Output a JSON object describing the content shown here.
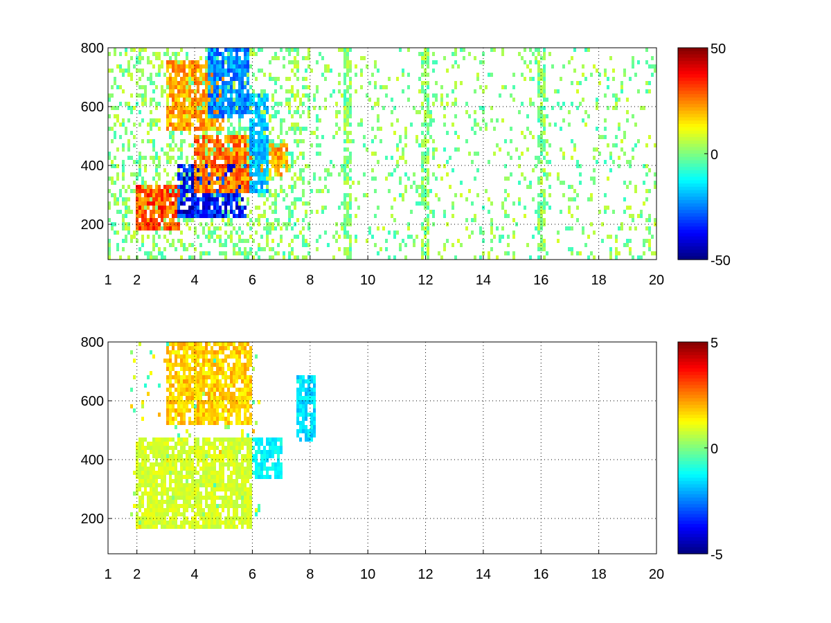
{
  "chart_data": [
    {
      "type": "heatmap",
      "name": "top-panel",
      "x_ticks": [
        1,
        2,
        4,
        6,
        8,
        10,
        12,
        14,
        16,
        18,
        20
      ],
      "x_tick_labels": [
        "1",
        "2",
        "4",
        "6",
        "8",
        "10",
        "12",
        "14",
        "16",
        "18",
        "20"
      ],
      "y_ticks": [
        200,
        400,
        600,
        800
      ],
      "y_tick_labels": [
        "200",
        "400",
        "600",
        "800"
      ],
      "xlim": [
        1,
        20
      ],
      "ylim": [
        80,
        800
      ],
      "grid": true,
      "colormap": "jet",
      "clim": [
        -50,
        50
      ],
      "colorbar_ticks": [
        50,
        0,
        -50
      ],
      "colorbar_tick_labels": [
        "50",
        "0",
        "-50"
      ],
      "regions": [
        {
          "desc": "lower ridge positive",
          "x0": 2.0,
          "x1": 3.5,
          "y0": 180,
          "y1": 330,
          "value": 35
        },
        {
          "desc": "lower ridge negative",
          "x0": 3.4,
          "x1": 5.8,
          "y0": 220,
          "y1": 400,
          "value": -42
        },
        {
          "desc": "lower band positive",
          "x0": 4.0,
          "x1": 6.0,
          "y0": 300,
          "y1": 500,
          "value": 30
        },
        {
          "desc": "upper band positive",
          "x0": 3.0,
          "x1": 5.0,
          "y0": 520,
          "y1": 760,
          "value": 25
        },
        {
          "desc": "upper band negative",
          "x0": 4.5,
          "x1": 5.9,
          "y0": 560,
          "y1": 800,
          "value": -28
        },
        {
          "desc": "tail positive",
          "x0": 6.2,
          "x1": 7.2,
          "y0": 360,
          "y1": 480,
          "value": 25
        },
        {
          "desc": "tail negative",
          "x0": 5.9,
          "x1": 6.6,
          "y0": 300,
          "y1": 640,
          "value": -22
        }
      ],
      "vertical_stripes_x": [
        9.3,
        12.0,
        16.0
      ]
    },
    {
      "type": "heatmap",
      "name": "bottom-panel",
      "x_ticks": [
        1,
        2,
        4,
        6,
        8,
        10,
        12,
        14,
        16,
        18,
        20
      ],
      "x_tick_labels": [
        "1",
        "2",
        "4",
        "6",
        "8",
        "10",
        "12",
        "14",
        "16",
        "18",
        "20"
      ],
      "y_ticks": [
        200,
        400,
        600,
        800
      ],
      "y_tick_labels": [
        "200",
        "400",
        "600",
        "800"
      ],
      "xlim": [
        1,
        20
      ],
      "ylim": [
        80,
        800
      ],
      "grid": true,
      "colormap": "jet",
      "clim": [
        -5,
        5
      ],
      "colorbar_ticks": [
        5,
        0,
        -5
      ],
      "colorbar_tick_labels": [
        "5",
        "0",
        "-5"
      ],
      "regions": [
        {
          "desc": "lower band",
          "x0": 2.0,
          "x1": 6.0,
          "y0": 170,
          "y1": 480,
          "value": 1
        },
        {
          "desc": "upper band",
          "x0": 3.0,
          "x1": 6.0,
          "y0": 520,
          "y1": 800,
          "value": 2
        },
        {
          "desc": "tail",
          "x0": 6.0,
          "x1": 7.0,
          "y0": 340,
          "y1": 480,
          "value": -1.5
        },
        {
          "desc": "far tail",
          "x0": 7.5,
          "x1": 8.2,
          "y0": 460,
          "y1": 680,
          "value": -1.8
        }
      ]
    }
  ]
}
